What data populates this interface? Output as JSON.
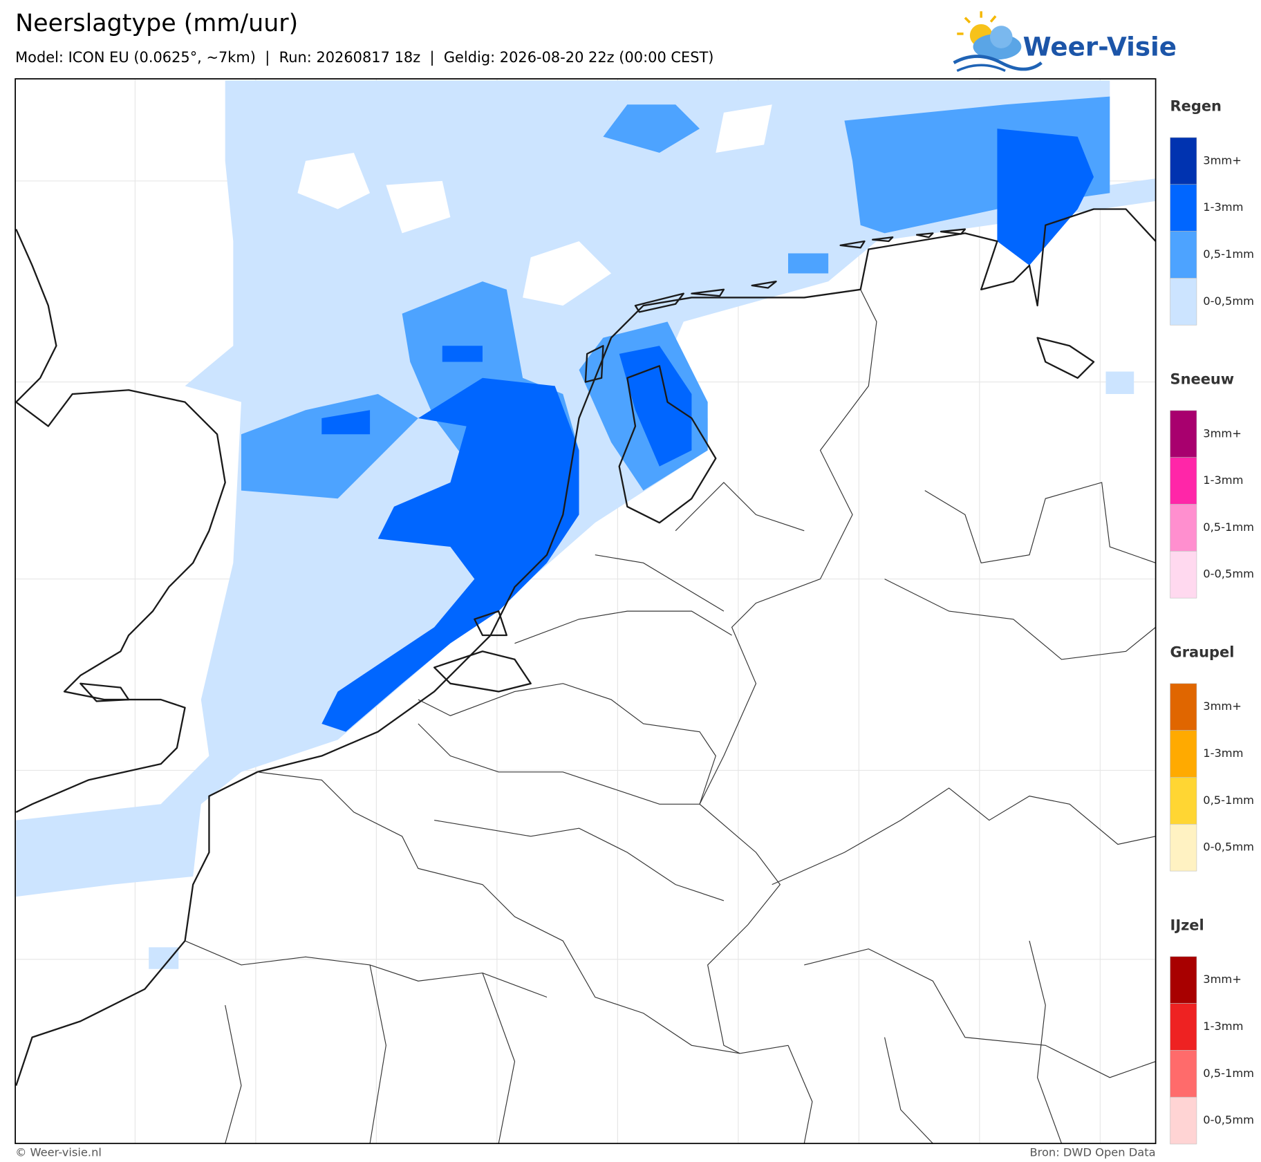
{
  "header": {
    "title": "Neerslagtype (mm/uur)",
    "subtitle": "Model: ICON EU (0.0625°, ~7km)  |  Run: 20260817 18z  |  Geldig: 2026-08-20 22z (00:00 CEST)",
    "logo": "Weer-Visie"
  },
  "legend": [
    {
      "name": "Regen",
      "classes": [
        {
          "label": "3mm+",
          "color": "#0033b0"
        },
        {
          "label": "1-3mm",
          "color": "#0066ff"
        },
        {
          "label": "0,5-1mm",
          "color": "#4da3ff"
        },
        {
          "label": "0-0,5mm",
          "color": "#cce4ff"
        }
      ]
    },
    {
      "name": "Sneeuw",
      "classes": [
        {
          "label": "3mm+",
          "color": "#a8006e"
        },
        {
          "label": "1-3mm",
          "color": "#ff26a8"
        },
        {
          "label": "0,5-1mm",
          "color": "#ff8fcf"
        },
        {
          "label": "0-0,5mm",
          "color": "#ffd9ef"
        }
      ]
    },
    {
      "name": "Graupel",
      "classes": [
        {
          "label": "3mm+",
          "color": "#e06600"
        },
        {
          "label": "1-3mm",
          "color": "#ffaa00"
        },
        {
          "label": "0,5-1mm",
          "color": "#ffd633"
        },
        {
          "label": "0-0,5mm",
          "color": "#fff2c2"
        }
      ]
    },
    {
      "name": "IJzel",
      "classes": [
        {
          "label": "3mm+",
          "color": "#a80000"
        },
        {
          "label": "1-3mm",
          "color": "#ee2222"
        },
        {
          "label": "0,5-1mm",
          "color": "#ff6b6b"
        },
        {
          "label": "0-0,5mm",
          "color": "#ffd4d4"
        }
      ]
    }
  ],
  "footer": {
    "left": "© Weer-visie.nl",
    "right": "Bron: DWD Open Data"
  }
}
